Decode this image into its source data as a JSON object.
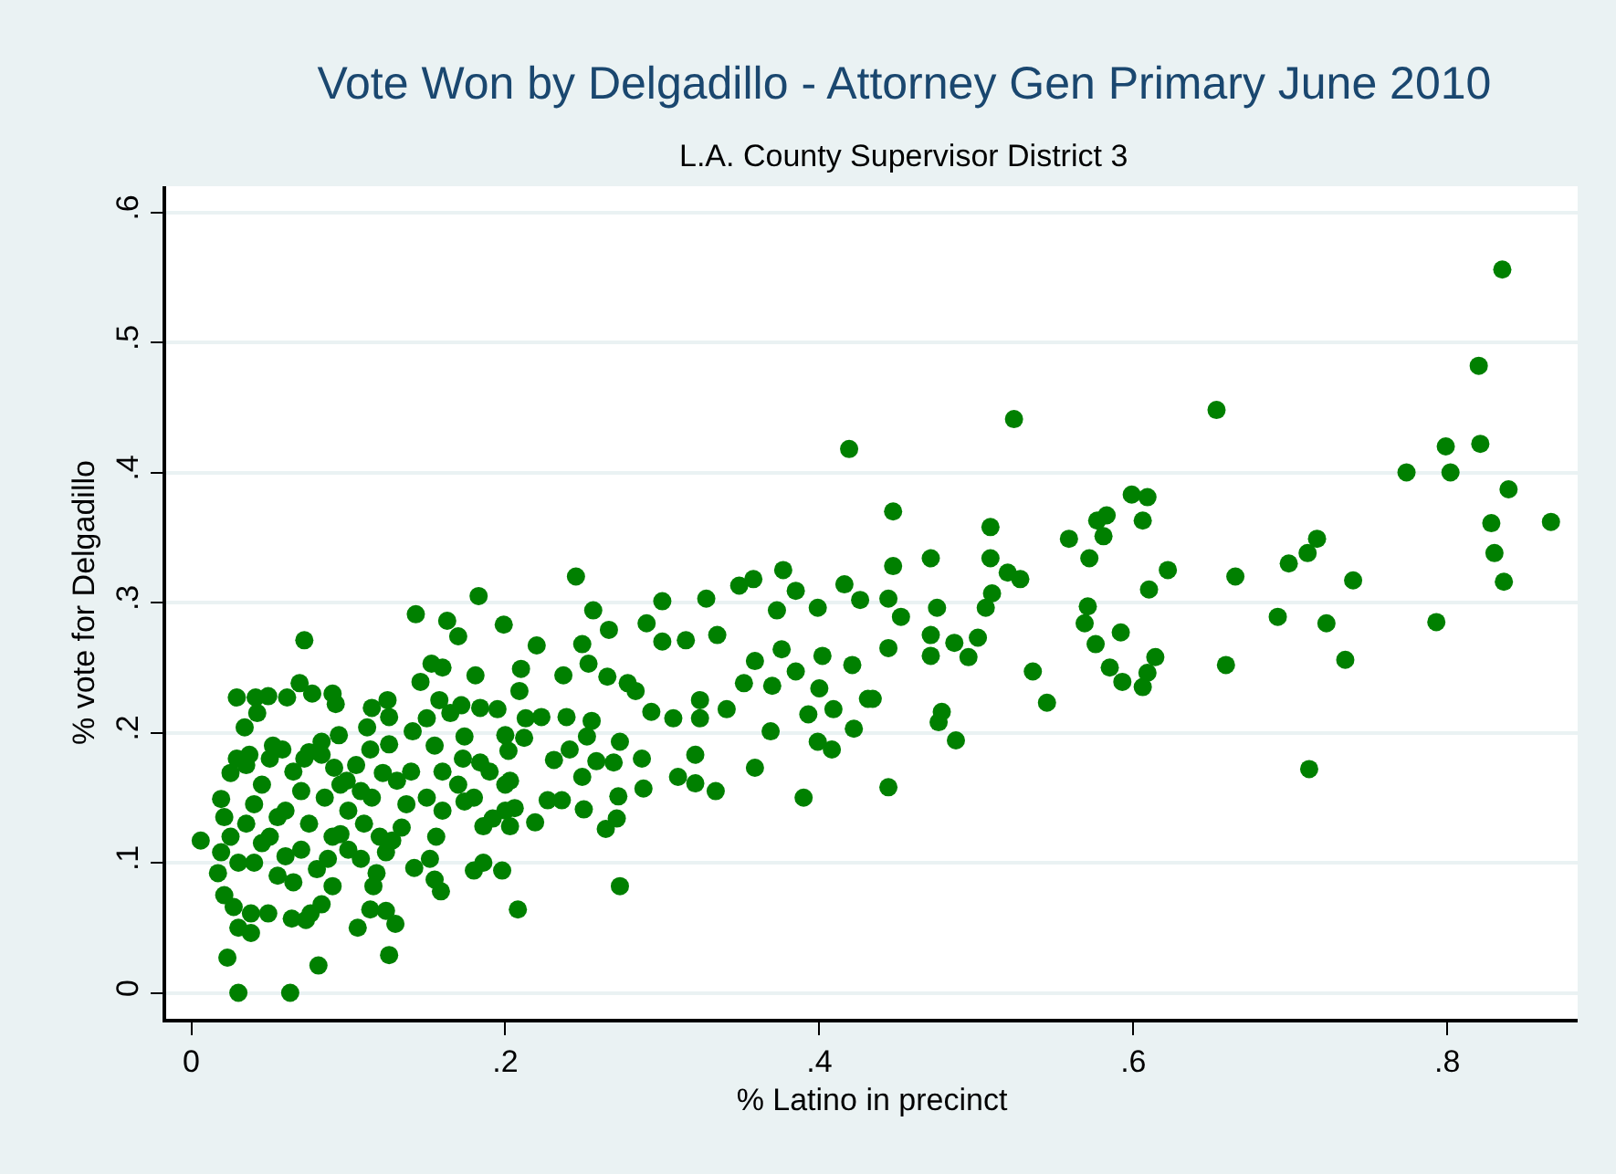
{
  "chart_data": {
    "type": "scatter",
    "title": "Vote Won by Delgadillo - Attorney Gen Primary June 2010",
    "subtitle": "L.A. County Supervisor District 3",
    "xlabel": "% Latino in precinct",
    "ylabel": "% vote for Delgadillo",
    "xlim": [
      -0.016,
      0.883
    ],
    "ylim": [
      -0.02,
      0.62
    ],
    "xticks": [
      0,
      {
        "value": 0.2,
        "label": ".2"
      },
      {
        "value": 0.4,
        "label": ".4"
      },
      {
        "value": 0.6,
        "label": ".6"
      },
      {
        "value": 0.8,
        "label": ".8"
      }
    ],
    "yticks": [
      0,
      {
        "value": 0.1,
        "label": ".1"
      },
      {
        "value": 0.2,
        "label": ".2"
      },
      {
        "value": 0.3,
        "label": ".3"
      },
      {
        "value": 0.4,
        "label": ".4"
      },
      {
        "value": 0.5,
        "label": ".5"
      },
      {
        "value": 0.6,
        "label": ".6"
      }
    ],
    "grid": "y",
    "marker": "circle",
    "series": [
      {
        "color": "#008000",
        "x": [
          0.835,
          0.82,
          0.799,
          0.821,
          0.774,
          0.802,
          0.839,
          0.828,
          0.866,
          0.83,
          0.836,
          0.793,
          0.653,
          0.524,
          0.419,
          0.447,
          0.74,
          0.717,
          0.711,
          0.699,
          0.692,
          0.723,
          0.665,
          0.622,
          0.61,
          0.599,
          0.609,
          0.606,
          0.577,
          0.583,
          0.581,
          0.559,
          0.572,
          0.509,
          0.509,
          0.52,
          0.528,
          0.506,
          0.51,
          0.471,
          0.475,
          0.447,
          0.444,
          0.452,
          0.416,
          0.444,
          0.712,
          0.487,
          0.476,
          0.478,
          0.545,
          0.536,
          0.434,
          0.422,
          0.421,
          0.444,
          0.471,
          0.495,
          0.486,
          0.501,
          0.471,
          0.593,
          0.606,
          0.609,
          0.614,
          0.585,
          0.576,
          0.569,
          0.592,
          0.659,
          0.735,
          0.571,
          0.245,
          0.183,
          0.143,
          0.163,
          0.17,
          0.199,
          0.22,
          0.181,
          0.209,
          0.21,
          0.237,
          0.256,
          0.266,
          0.3,
          0.29,
          0.3,
          0.328,
          0.315,
          0.335,
          0.349,
          0.358,
          0.377,
          0.385,
          0.373,
          0.399,
          0.426,
          0.402,
          0.376,
          0.385,
          0.359,
          0.352,
          0.37,
          0.369,
          0.359,
          0.39,
          0.4,
          0.409,
          0.393,
          0.399,
          0.408,
          0.431,
          0.324,
          0.341,
          0.324,
          0.321,
          0.334,
          0.31,
          0.321,
          0.288,
          0.287,
          0.293,
          0.283,
          0.307,
          0.278,
          0.273,
          0.269,
          0.258,
          0.249,
          0.25,
          0.272,
          0.271,
          0.264,
          0.273,
          0.241,
          0.231,
          0.252,
          0.255,
          0.239,
          0.265,
          0.253,
          0.249,
          0.236,
          0.227,
          0.219,
          0.206,
          0.203,
          0.208,
          0.198,
          0.186,
          0.18,
          0.186,
          0.192,
          0.203,
          0.202,
          0.184,
          0.173,
          0.174,
          0.174,
          0.165,
          0.172,
          0.184,
          0.195,
          0.213,
          0.223,
          0.2,
          0.212,
          0.153,
          0.16,
          0.146,
          0.158,
          0.15,
          0.141,
          0.155,
          0.16,
          0.156,
          0.155,
          0.159,
          0.142,
          0.152,
          0.126,
          0.13,
          0.124,
          0.114,
          0.116,
          0.106,
          0.081,
          0.072,
          0.063,
          0.03,
          0.023,
          0.03,
          0.038,
          0.073,
          0.029,
          0.041,
          0.049,
          0.061,
          0.069,
          0.077,
          0.09,
          0.092,
          0.042,
          0.034,
          0.115,
          0.125,
          0.126,
          0.112,
          0.094,
          0.083,
          0.126,
          0.114,
          0.006,
          0.017,
          0.021,
          0.019,
          0.021,
          0.025,
          0.029,
          0.037,
          0.052,
          0.058,
          0.072,
          0.083,
          0.091,
          0.099,
          0.108,
          0.122,
          0.131,
          0.137,
          0.134,
          0.128,
          0.124,
          0.118,
          0.108,
          0.095,
          0.087,
          0.09,
          0.083,
          0.076,
          0.064,
          0.049,
          0.038,
          0.027,
          0.019,
          0.04,
          0.05,
          0.06,
          0.07,
          0.045,
          0.055,
          0.065,
          0.075,
          0.085,
          0.035,
          0.05,
          0.06,
          0.07,
          0.08,
          0.09,
          0.04,
          0.055,
          0.065,
          0.075,
          0.045,
          0.1,
          0.11,
          0.1,
          0.095,
          0.105,
          0.115,
          0.12,
          0.035,
          0.03,
          0.025,
          0.16,
          0.17,
          0.18,
          0.15,
          0.14,
          0.19,
          0.2,
          0.2
        ],
        "values": [
          0.556,
          0.482,
          0.42,
          0.422,
          0.4,
          0.4,
          0.387,
          0.361,
          0.362,
          0.338,
          0.316,
          0.285,
          0.448,
          0.441,
          0.418,
          0.37,
          0.317,
          0.349,
          0.338,
          0.33,
          0.289,
          0.284,
          0.32,
          0.325,
          0.31,
          0.383,
          0.381,
          0.363,
          0.363,
          0.367,
          0.351,
          0.349,
          0.334,
          0.358,
          0.334,
          0.323,
          0.318,
          0.296,
          0.307,
          0.334,
          0.296,
          0.328,
          0.303,
          0.289,
          0.314,
          0.158,
          0.172,
          0.194,
          0.208,
          0.216,
          0.223,
          0.247,
          0.226,
          0.203,
          0.252,
          0.265,
          0.259,
          0.258,
          0.269,
          0.273,
          0.275,
          0.239,
          0.235,
          0.246,
          0.258,
          0.25,
          0.268,
          0.284,
          0.277,
          0.252,
          0.256,
          0.297,
          0.32,
          0.305,
          0.291,
          0.286,
          0.274,
          0.283,
          0.267,
          0.244,
          0.232,
          0.249,
          0.244,
          0.294,
          0.279,
          0.301,
          0.284,
          0.27,
          0.303,
          0.271,
          0.275,
          0.313,
          0.318,
          0.325,
          0.309,
          0.294,
          0.296,
          0.302,
          0.259,
          0.264,
          0.247,
          0.255,
          0.238,
          0.236,
          0.201,
          0.173,
          0.15,
          0.234,
          0.218,
          0.214,
          0.193,
          0.187,
          0.226,
          0.225,
          0.218,
          0.211,
          0.183,
          0.155,
          0.166,
          0.161,
          0.157,
          0.18,
          0.216,
          0.232,
          0.211,
          0.238,
          0.193,
          0.177,
          0.178,
          0.166,
          0.141,
          0.151,
          0.134,
          0.126,
          0.082,
          0.187,
          0.179,
          0.197,
          0.209,
          0.212,
          0.243,
          0.253,
          0.268,
          0.148,
          0.148,
          0.131,
          0.142,
          0.128,
          0.064,
          0.094,
          0.1,
          0.094,
          0.128,
          0.134,
          0.163,
          0.186,
          0.177,
          0.18,
          0.147,
          0.197,
          0.215,
          0.221,
          0.219,
          0.218,
          0.211,
          0.212,
          0.198,
          0.196,
          0.253,
          0.25,
          0.239,
          0.225,
          0.211,
          0.201,
          0.19,
          0.17,
          0.12,
          0.087,
          0.078,
          0.096,
          0.103,
          0.029,
          0.053,
          0.063,
          0.064,
          0.082,
          0.05,
          0.021,
          0.271,
          0.0,
          0.0,
          0.027,
          0.05,
          0.046,
          0.056,
          0.227,
          0.227,
          0.228,
          0.227,
          0.238,
          0.23,
          0.23,
          0.222,
          0.215,
          0.204,
          0.219,
          0.225,
          0.212,
          0.204,
          0.198,
          0.193,
          0.191,
          0.187,
          0.117,
          0.092,
          0.075,
          0.149,
          0.135,
          0.169,
          0.18,
          0.183,
          0.19,
          0.187,
          0.18,
          0.183,
          0.173,
          0.163,
          0.155,
          0.169,
          0.163,
          0.145,
          0.127,
          0.117,
          0.108,
          0.092,
          0.103,
          0.122,
          0.103,
          0.082,
          0.068,
          0.061,
          0.057,
          0.061,
          0.061,
          0.066,
          0.108,
          0.1,
          0.12,
          0.14,
          0.11,
          0.16,
          0.09,
          0.17,
          0.13,
          0.15,
          0.13,
          0.18,
          0.105,
          0.155,
          0.095,
          0.12,
          0.145,
          0.135,
          0.085,
          0.185,
          0.115,
          0.14,
          0.13,
          0.11,
          0.16,
          0.175,
          0.15,
          0.12,
          0.175,
          0.1,
          0.12,
          0.14,
          0.16,
          0.15,
          0.15,
          0.17,
          0.17,
          0.16,
          0.14
        ]
      }
    ]
  }
}
